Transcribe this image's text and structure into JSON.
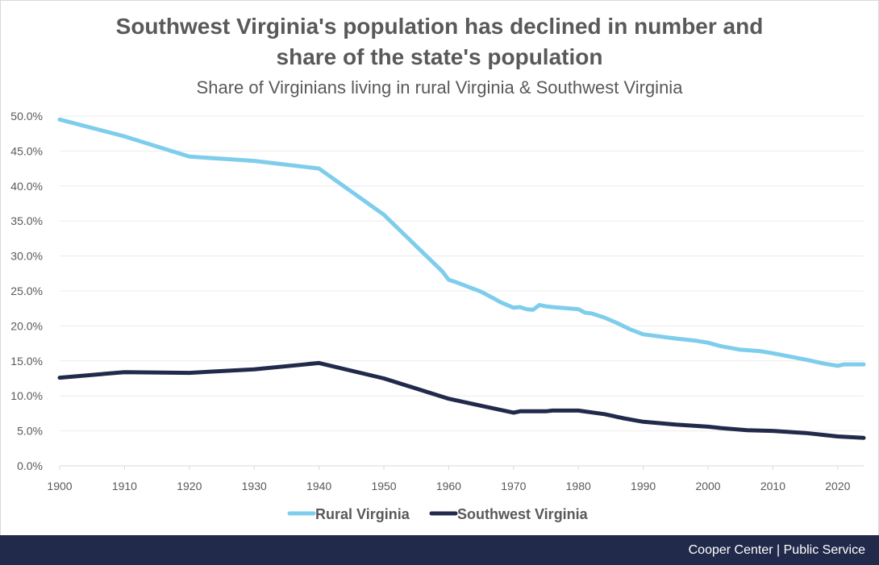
{
  "header": {
    "title_line1": "Southwest Virginia's population has declined in number and",
    "title_line2": "share of the state's population",
    "subtitle": "Share of Virginians living in rural Virginia & Southwest Virginia"
  },
  "footer": {
    "credit": "Cooper Center | Public Service"
  },
  "chart_data": {
    "type": "line",
    "title": "Southwest Virginia's population has declined in number and share of the state's population",
    "subtitle": "Share of Virginians living in rural Virginia & Southwest Virginia",
    "xlabel": "",
    "ylabel": "",
    "xlim": [
      1900,
      2024
    ],
    "ylim": [
      0,
      50
    ],
    "x_ticks": [
      1900,
      1910,
      1920,
      1930,
      1940,
      1950,
      1960,
      1970,
      1980,
      1990,
      2000,
      2010,
      2020
    ],
    "x_tick_labels": [
      "1900",
      "1910",
      "1920",
      "1930",
      "1940",
      "1950",
      "1960",
      "1970",
      "1980",
      "1990",
      "2000",
      "2010",
      "2020"
    ],
    "y_ticks": [
      0,
      5,
      10,
      15,
      20,
      25,
      30,
      35,
      40,
      45,
      50
    ],
    "y_tick_labels": [
      "0.0%",
      "5.0%",
      "10.0%",
      "15.0%",
      "20.0%",
      "25.0%",
      "30.0%",
      "35.0%",
      "40.0%",
      "45.0%",
      "50.0%"
    ],
    "grid": "horizontal",
    "legend_position": "bottom",
    "series": [
      {
        "name": "Rural Virginia",
        "color": "#7ecdec",
        "points": [
          [
            1900,
            49.5
          ],
          [
            1910,
            47.1
          ],
          [
            1920,
            44.2
          ],
          [
            1930,
            43.6
          ],
          [
            1940,
            42.5
          ],
          [
            1950,
            35.9
          ],
          [
            1959,
            27.8
          ],
          [
            1960,
            26.6
          ],
          [
            1961,
            26.3
          ],
          [
            1965,
            24.9
          ],
          [
            1967,
            23.9
          ],
          [
            1968,
            23.4
          ],
          [
            1970,
            22.6
          ],
          [
            1971,
            22.7
          ],
          [
            1972,
            22.4
          ],
          [
            1973,
            22.3
          ],
          [
            1974,
            23.0
          ],
          [
            1975,
            22.8
          ],
          [
            1976,
            22.7
          ],
          [
            1980,
            22.4
          ],
          [
            1981,
            21.9
          ],
          [
            1982,
            21.8
          ],
          [
            1984,
            21.2
          ],
          [
            1986,
            20.4
          ],
          [
            1988,
            19.5
          ],
          [
            1990,
            18.8
          ],
          [
            1995,
            18.2
          ],
          [
            1998,
            17.9
          ],
          [
            2000,
            17.6
          ],
          [
            2002,
            17.1
          ],
          [
            2005,
            16.6
          ],
          [
            2008,
            16.4
          ],
          [
            2010,
            16.1
          ],
          [
            2015,
            15.2
          ],
          [
            2018,
            14.6
          ],
          [
            2020,
            14.3
          ],
          [
            2021,
            14.5
          ],
          [
            2024,
            14.5
          ]
        ]
      },
      {
        "name": "Southwest Virginia",
        "color": "#222a4b",
        "points": [
          [
            1900,
            12.6
          ],
          [
            1910,
            13.4
          ],
          [
            1920,
            13.3
          ],
          [
            1930,
            13.8
          ],
          [
            1940,
            14.7
          ],
          [
            1950,
            12.5
          ],
          [
            1960,
            9.6
          ],
          [
            1965,
            8.6
          ],
          [
            1970,
            7.6
          ],
          [
            1971,
            7.8
          ],
          [
            1975,
            7.8
          ],
          [
            1976,
            7.9
          ],
          [
            1980,
            7.9
          ],
          [
            1984,
            7.4
          ],
          [
            1987,
            6.8
          ],
          [
            1990,
            6.3
          ],
          [
            1995,
            5.9
          ],
          [
            2000,
            5.6
          ],
          [
            2002,
            5.4
          ],
          [
            2006,
            5.1
          ],
          [
            2010,
            5.0
          ],
          [
            2015,
            4.7
          ],
          [
            2020,
            4.2
          ],
          [
            2024,
            4.0
          ]
        ]
      }
    ]
  }
}
